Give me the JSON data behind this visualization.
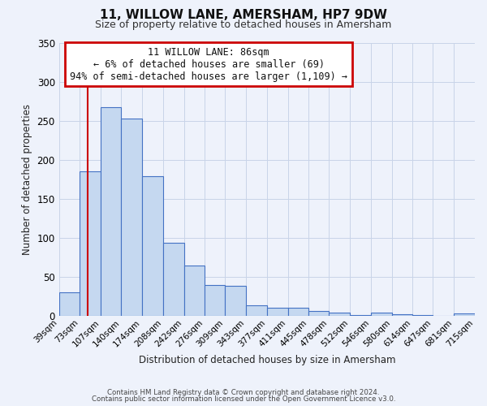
{
  "title": "11, WILLOW LANE, AMERSHAM, HP7 9DW",
  "subtitle": "Size of property relative to detached houses in Amersham",
  "xlabel": "Distribution of detached houses by size in Amersham",
  "ylabel": "Number of detached properties",
  "bin_labels": [
    "39sqm",
    "73sqm",
    "107sqm",
    "140sqm",
    "174sqm",
    "208sqm",
    "242sqm",
    "276sqm",
    "309sqm",
    "343sqm",
    "377sqm",
    "411sqm",
    "445sqm",
    "478sqm",
    "512sqm",
    "546sqm",
    "580sqm",
    "614sqm",
    "647sqm",
    "681sqm",
    "715sqm"
  ],
  "bar_heights": [
    30,
    185,
    267,
    253,
    179,
    94,
    65,
    40,
    39,
    14,
    10,
    10,
    6,
    4,
    1,
    4,
    2,
    1,
    0,
    3
  ],
  "bar_color": "#c5d8f0",
  "bar_edge_color": "#4472c4",
  "vline_x": 86,
  "ylim": [
    0,
    350
  ],
  "yticks": [
    0,
    50,
    100,
    150,
    200,
    250,
    300,
    350
  ],
  "annotation_title": "11 WILLOW LANE: 86sqm",
  "annotation_line2": "← 6% of detached houses are smaller (69)",
  "annotation_line3": "94% of semi-detached houses are larger (1,109) →",
  "annotation_box_color": "#ffffff",
  "annotation_box_edge": "#cc0000",
  "footer1": "Contains HM Land Registry data © Crown copyright and database right 2024.",
  "footer2": "Contains public sector information licensed under the Open Government Licence v3.0.",
  "background_color": "#eef2fb",
  "grid_color": "#c8d4e8"
}
